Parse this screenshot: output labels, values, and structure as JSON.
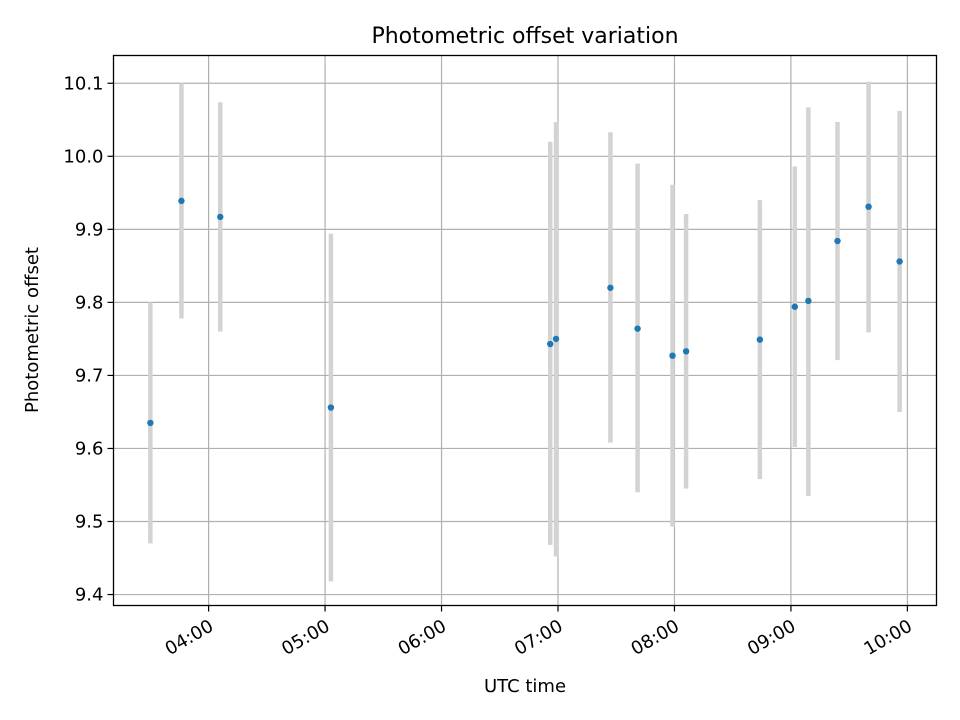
{
  "chart_data": {
    "type": "scatter",
    "title": "Photometric offset variation",
    "xlabel": "UTC time",
    "ylabel": "Photometric offset",
    "x_ticks": [
      "04:00",
      "05:00",
      "06:00",
      "07:00",
      "08:00",
      "09:00",
      "10:00"
    ],
    "y_ticks": [
      "9.4",
      "9.5",
      "9.6",
      "9.7",
      "9.8",
      "9.9",
      "10.0",
      "10.1"
    ],
    "xlim": [
      "03:11",
      "10:15"
    ],
    "ylim": [
      9.385,
      10.138
    ],
    "grid": true,
    "colors": {
      "point": "#1f77b4",
      "errorbar": "#d3d3d3",
      "grid": "#b0b0b0"
    },
    "points": [
      {
        "x": "03:30",
        "y": 9.635,
        "ylo": 9.47,
        "yhi": 9.8
      },
      {
        "x": "03:46",
        "y": 9.939,
        "ylo": 9.778,
        "yhi": 10.1
      },
      {
        "x": "04:06",
        "y": 9.917,
        "ylo": 9.76,
        "yhi": 10.074
      },
      {
        "x": "05:03",
        "y": 9.656,
        "ylo": 9.418,
        "yhi": 9.894
      },
      {
        "x": "06:56",
        "y": 9.743,
        "ylo": 9.468,
        "yhi": 10.02
      },
      {
        "x": "06:59",
        "y": 9.75,
        "ylo": 9.452,
        "yhi": 10.047
      },
      {
        "x": "07:27",
        "y": 9.82,
        "ylo": 9.608,
        "yhi": 10.033
      },
      {
        "x": "07:41",
        "y": 9.764,
        "ylo": 9.54,
        "yhi": 9.99
      },
      {
        "x": "07:59",
        "y": 9.727,
        "ylo": 9.493,
        "yhi": 9.961
      },
      {
        "x": "08:06",
        "y": 9.733,
        "ylo": 9.545,
        "yhi": 9.921
      },
      {
        "x": "08:44",
        "y": 9.749,
        "ylo": 9.558,
        "yhi": 9.94
      },
      {
        "x": "09:02",
        "y": 9.794,
        "ylo": 9.602,
        "yhi": 9.986
      },
      {
        "x": "09:09",
        "y": 9.802,
        "ylo": 9.535,
        "yhi": 10.067
      },
      {
        "x": "09:24",
        "y": 9.884,
        "ylo": 9.721,
        "yhi": 10.047
      },
      {
        "x": "09:40",
        "y": 9.931,
        "ylo": 9.759,
        "yhi": 10.102
      },
      {
        "x": "09:56",
        "y": 9.856,
        "ylo": 9.65,
        "yhi": 10.062
      }
    ]
  }
}
